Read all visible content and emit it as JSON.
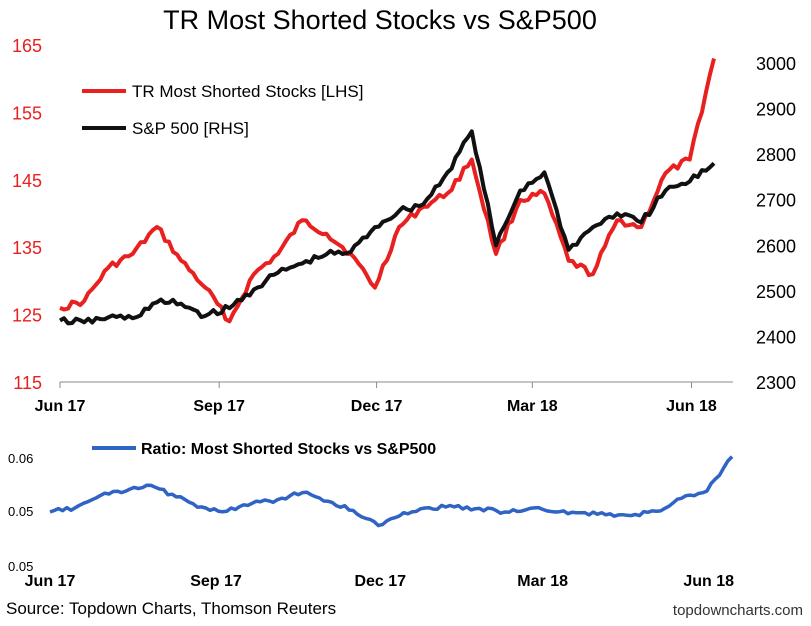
{
  "chart_data": [
    {
      "type": "line",
      "title": "TR Most Shorted Stocks vs S&P500",
      "x_tick_labels": [
        "Jun 17",
        "Sep 17",
        "Dec 17",
        "Mar 18",
        "Jun 18"
      ],
      "x_range": [
        "2017-06",
        "2018-06"
      ],
      "y_left": {
        "ylim": [
          115,
          165
        ],
        "ticks": [
          "115",
          "125",
          "135",
          "145",
          "155",
          "165"
        ],
        "color": "#e8201f"
      },
      "y_right": {
        "ylim": [
          2300,
          3000
        ],
        "ticks": [
          "2300",
          "2400",
          "2500",
          "2600",
          "2700",
          "2800",
          "2900",
          "3000"
        ]
      },
      "legend": "top-left",
      "grid": false,
      "series": [
        {
          "name": "TR Most Shorted Stocks [LHS]",
          "axis": "left",
          "color": "#e8201f",
          "x": [
            "2017-06-01",
            "2017-06-15",
            "2017-06-29",
            "2017-07-13",
            "2017-07-27",
            "2017-08-10",
            "2017-08-24",
            "2017-09-07",
            "2017-09-21",
            "2017-10-05",
            "2017-10-19",
            "2017-11-02",
            "2017-11-16",
            "2017-11-30",
            "2017-12-14",
            "2017-12-28",
            "2018-01-11",
            "2018-01-25",
            "2018-02-08",
            "2018-02-22",
            "2018-03-08",
            "2018-03-22",
            "2018-04-05",
            "2018-04-19",
            "2018-05-03",
            "2018-05-17",
            "2018-05-31",
            "2018-06-14"
          ],
          "values": [
            126,
            127,
            132,
            134,
            138,
            133,
            129,
            124,
            131,
            134,
            139,
            137,
            134,
            129,
            138,
            141,
            143,
            148,
            134,
            142,
            143,
            133,
            131,
            139,
            138,
            146,
            148,
            163
          ]
        },
        {
          "name": "S&P 500 [RHS]",
          "axis": "right",
          "color": "#111111",
          "x": [
            "2017-06-01",
            "2017-06-15",
            "2017-06-29",
            "2017-07-13",
            "2017-07-27",
            "2017-08-10",
            "2017-08-24",
            "2017-09-07",
            "2017-09-21",
            "2017-10-05",
            "2017-10-19",
            "2017-11-02",
            "2017-11-16",
            "2017-11-30",
            "2017-12-14",
            "2017-12-28",
            "2018-01-11",
            "2018-01-25",
            "2018-02-08",
            "2018-02-22",
            "2018-03-08",
            "2018-03-22",
            "2018-04-05",
            "2018-04-19",
            "2018-05-03",
            "2018-05-17",
            "2018-05-31",
            "2018-06-14"
          ],
          "values": [
            2435,
            2431,
            2442,
            2440,
            2475,
            2472,
            2445,
            2462,
            2503,
            2540,
            2560,
            2580,
            2585,
            2640,
            2675,
            2690,
            2760,
            2850,
            2600,
            2720,
            2760,
            2590,
            2640,
            2670,
            2650,
            2720,
            2740,
            2780
          ]
        }
      ]
    },
    {
      "type": "line",
      "title": "",
      "x_tick_labels": [
        "Jun 17",
        "Sep 17",
        "Dec 17",
        "Mar 18",
        "Jun 18"
      ],
      "x_range": [
        "2017-06",
        "2018-06"
      ],
      "y_ticks": [
        "0.05",
        "0.05",
        "0.06"
      ],
      "ylim": [
        0.0445,
        0.0605
      ],
      "legend": "top-left",
      "grid": false,
      "series": [
        {
          "name": "Ratio: Most Shorted Stocks vs S&P500",
          "color": "#2f63c4",
          "x": [
            "2017-06-01",
            "2017-06-15",
            "2017-06-29",
            "2017-07-13",
            "2017-07-27",
            "2017-08-10",
            "2017-08-24",
            "2017-09-07",
            "2017-09-21",
            "2017-10-05",
            "2017-10-19",
            "2017-11-02",
            "2017-11-16",
            "2017-11-30",
            "2017-12-14",
            "2017-12-28",
            "2018-01-11",
            "2018-01-25",
            "2018-02-08",
            "2018-02-22",
            "2018-03-08",
            "2018-03-22",
            "2018-04-05",
            "2018-04-19",
            "2018-05-03",
            "2018-05-17",
            "2018-05-31",
            "2018-06-14"
          ],
          "values": [
            0.0516,
            0.0522,
            0.0539,
            0.0545,
            0.0553,
            0.0537,
            0.0523,
            0.0517,
            0.0528,
            0.0533,
            0.0543,
            0.0531,
            0.0518,
            0.0497,
            0.0515,
            0.0522,
            0.0523,
            0.0521,
            0.0516,
            0.0521,
            0.0516,
            0.0515,
            0.0512,
            0.0511,
            0.0517,
            0.0535,
            0.0545,
            0.0593
          ]
        }
      ]
    }
  ],
  "footer": {
    "source": "Source: Topdown Charts, Thomson Reuters",
    "watermark": "topdowncharts.com"
  }
}
